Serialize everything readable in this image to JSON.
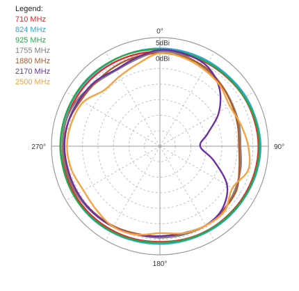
{
  "chart_data": {
    "type": "polar_line",
    "legend_title": "Legend:",
    "angle_labels": [
      {
        "angle": 0,
        "text": "0°"
      },
      {
        "angle": 90,
        "text": "90°"
      },
      {
        "angle": 180,
        "text": "180°"
      },
      {
        "angle": 270,
        "text": "270°"
      }
    ],
    "ring_labels": [
      {
        "value": 5,
        "text": "5dBi"
      },
      {
        "value": 0,
        "text": "0dBi"
      }
    ],
    "radial_range": [
      -30,
      5
    ],
    "ring_step": 5,
    "grid": true,
    "legend_position": "top-left",
    "angles_deg": [
      0,
      15,
      30,
      45,
      60,
      75,
      90,
      105,
      120,
      135,
      150,
      165,
      180,
      195,
      210,
      225,
      240,
      255,
      270,
      285,
      300,
      315,
      330,
      345
    ],
    "series": [
      {
        "name": "710 MHz",
        "color": "#e5262b",
        "values": [
          0.5,
          0.6,
          0.8,
          1.0,
          1.4,
          1.6,
          1.8,
          1.7,
          1.5,
          1.3,
          1.2,
          1.0,
          0.8,
          1.0,
          1.2,
          1.4,
          1.6,
          1.5,
          1.5,
          1.4,
          1.2,
          1.0,
          0.8,
          0.6
        ]
      },
      {
        "name": "824 MHz",
        "color": "#28a8dc",
        "values": [
          1.5,
          1.5,
          1.5,
          1.6,
          2.0,
          2.2,
          2.5,
          2.3,
          2.0,
          1.8,
          1.6,
          1.5,
          1.5,
          1.6,
          1.8,
          2.0,
          2.0,
          2.0,
          2.2,
          2.0,
          1.8,
          1.6,
          1.5,
          1.5
        ]
      },
      {
        "name": "925 MHz",
        "color": "#2aa84a",
        "values": [
          1.2,
          1.1,
          1.0,
          1.2,
          1.5,
          1.9,
          2.1,
          2.0,
          1.8,
          1.5,
          1.3,
          1.2,
          1.0,
          1.3,
          1.6,
          1.8,
          2.0,
          2.0,
          2.1,
          2.1,
          2.0,
          1.9,
          1.6,
          1.4
        ]
      },
      {
        "name": "1755 MHz",
        "color": "#808080",
        "values": [
          0.5,
          0.2,
          -1.0,
          -2.0,
          -3.0,
          -3.5,
          -4.0,
          -3.0,
          -2.0,
          -1.0,
          -0.5,
          -0.5,
          -0.5,
          -0.5,
          0.0,
          0.5,
          1.0,
          1.2,
          1.5,
          1.4,
          0.5,
          -1.0,
          -1.8,
          -1.0
        ]
      },
      {
        "name": "1880 MHz",
        "color": "#b25a29",
        "values": [
          0.0,
          -0.2,
          -0.7,
          -2.0,
          -3.2,
          -4.0,
          -4.5,
          -3.5,
          -1.5,
          -1.0,
          -0.5,
          -1.0,
          -1.0,
          -0.8,
          -0.2,
          0.2,
          0.6,
          0.8,
          1.0,
          0.6,
          -0.5,
          -0.8,
          -0.5,
          -0.2
        ]
      },
      {
        "name": "2170 MHz",
        "color": "#6a2fa2",
        "values": [
          1.0,
          0.8,
          0.0,
          -3.0,
          -8.0,
          -14.0,
          -17.0,
          -12.0,
          -5.0,
          -1.5,
          -0.5,
          -1.0,
          -1.0,
          -0.5,
          0.0,
          0.4,
          0.5,
          0.6,
          0.8,
          0.6,
          0.0,
          -0.5,
          -1.5,
          -0.5
        ]
      },
      {
        "name": "2500 MHz",
        "color": "#f4a340",
        "values": [
          0.0,
          -0.5,
          -1.5,
          -2.5,
          -4.0,
          -3.0,
          -1.5,
          -0.5,
          -3.0,
          -0.5,
          -0.5,
          -1.0,
          -2.0,
          -0.5,
          0.0,
          -1.0,
          -1.5,
          -0.5,
          0.0,
          -0.5,
          -1.5,
          -4.5,
          -4.0,
          -2.5
        ]
      }
    ]
  }
}
